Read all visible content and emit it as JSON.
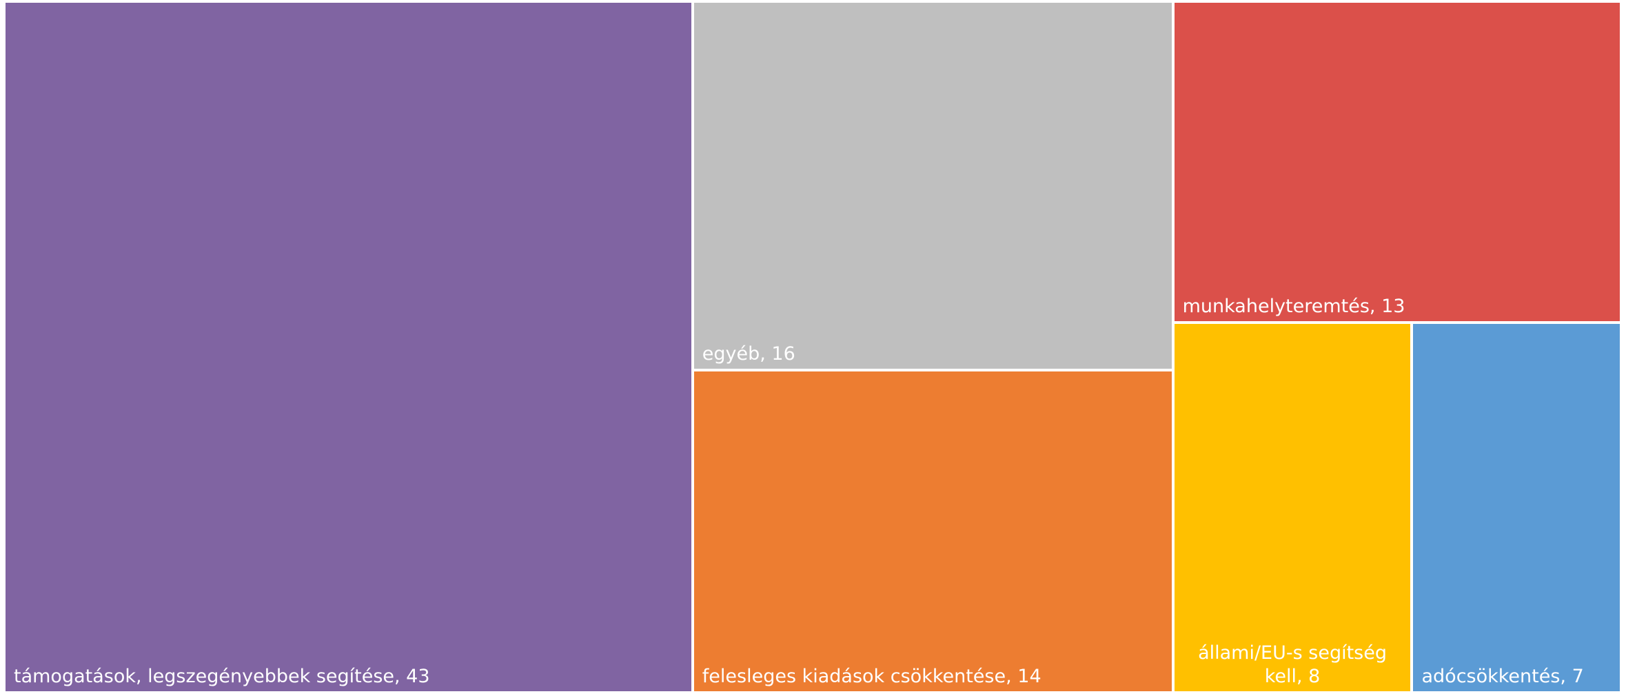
{
  "chart_data": {
    "type": "treemap",
    "items": [
      {
        "label": "támogatások, legszegényebbek segítése, 43",
        "name": "támogatások, legszegényebbek segítése",
        "value": 43,
        "color": "#8064A2"
      },
      {
        "label": "egyéb, 16",
        "name": "egyéb",
        "value": 16,
        "color": "#BFBFBF"
      },
      {
        "label": "felesleges kiadások csökkentése, 14",
        "name": "felesleges kiadások csökkentése",
        "value": 14,
        "color": "#ED7D31"
      },
      {
        "label": "munkahelyteremtés, 13",
        "name": "munkahelyteremtés",
        "value": 13,
        "color": "#DB504A"
      },
      {
        "label": "állami/EU-s segítség kell, 8",
        "name": "állami/EU-s segítség kell",
        "value": 8,
        "color": "#FFC000"
      },
      {
        "label": "adócsökkentés, 7",
        "name": "adócsökkentés",
        "value": 7,
        "color": "#5B9BD5"
      }
    ]
  }
}
